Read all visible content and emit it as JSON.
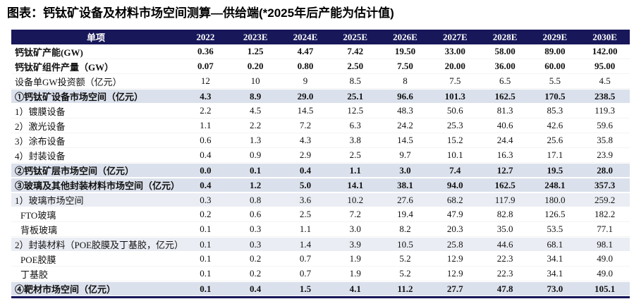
{
  "title": "图表：钙钛矿设备及材料市场空间测算—供给端(*2025年后产能为估计值)",
  "colors": {
    "header_bg": "#17175a",
    "header_text": "#ffffff",
    "highlight_row_bg": "#dbe1ec",
    "subhighlight_row_bg": "#eaedf3",
    "bottom_border": "#17175a",
    "body_text": "#111111"
  },
  "chart_data": {
    "type": "table",
    "title": "图表：钙钛矿设备及材料市场空间测算—供给端(*2025年后产能为估计值)",
    "columns": [
      "单项",
      "2022",
      "2023E",
      "2024E",
      "2025E",
      "2026E",
      "2027E",
      "2028E",
      "2029E",
      "2030E"
    ],
    "rows": [
      {
        "label": "钙钛矿产能(GW)",
        "bold": true,
        "bg": "white",
        "indent": false,
        "values": [
          "0.36",
          "1.25",
          "4.47",
          "7.42",
          "19.50",
          "33.00",
          "58.00",
          "89.00",
          "142.00"
        ]
      },
      {
        "label": "钙钛矿组件产量（GW）",
        "bold": true,
        "bg": "white",
        "indent": false,
        "values": [
          "0.07",
          "0.20",
          "0.80",
          "2.50",
          "7.50",
          "20.00",
          "36.00",
          "60.00",
          "95.00"
        ]
      },
      {
        "label": "设备单GW投资额（亿元）",
        "bold": false,
        "bg": "white",
        "indent": false,
        "values": [
          "12",
          "10",
          "9",
          "8.5",
          "8",
          "7.5",
          "6.5",
          "5.5",
          "4.5"
        ]
      },
      {
        "label": "①钙钛矿设备市场空间（亿元）",
        "bold": true,
        "bg": "highlight",
        "indent": false,
        "values": [
          "4.3",
          "8.9",
          "29.0",
          "25.1",
          "96.6",
          "101.3",
          "162.5",
          "170.5",
          "238.5"
        ]
      },
      {
        "label": "1）镀膜设备",
        "bold": false,
        "bg": "white",
        "indent": false,
        "values": [
          "2.2",
          "4.5",
          "14.5",
          "12.5",
          "48.3",
          "50.6",
          "81.3",
          "85.3",
          "119.3"
        ]
      },
      {
        "label": "2）激光设备",
        "bold": false,
        "bg": "white",
        "indent": false,
        "values": [
          "1.1",
          "2.2",
          "7.2",
          "6.3",
          "24.2",
          "25.3",
          "40.6",
          "42.6",
          "59.6"
        ]
      },
      {
        "label": "3）涂布设备",
        "bold": false,
        "bg": "white",
        "indent": false,
        "values": [
          "0.6",
          "1.3",
          "4.3",
          "3.8",
          "14.5",
          "15.2",
          "24.4",
          "25.6",
          "35.8"
        ]
      },
      {
        "label": "4）封装设备",
        "bold": false,
        "bg": "white",
        "indent": false,
        "values": [
          "0.4",
          "0.9",
          "2.9",
          "2.5",
          "9.7",
          "10.1",
          "16.3",
          "17.1",
          "23.9"
        ]
      },
      {
        "label": "②钙钛矿层市场空间（亿元）",
        "bold": true,
        "bg": "highlight",
        "indent": false,
        "values": [
          "0.0",
          "0.1",
          "0.4",
          "1.1",
          "3.0",
          "7.4",
          "12.7",
          "19.5",
          "28.0"
        ]
      },
      {
        "label": "③玻璃及其他封装材料市场空间（亿元）",
        "bold": true,
        "bg": "highlight",
        "indent": false,
        "values": [
          "0.4",
          "1.2",
          "5.0",
          "14.1",
          "38.1",
          "94.0",
          "162.5",
          "248.1",
          "357.3"
        ]
      },
      {
        "label": "1）玻璃市场空间",
        "bold": false,
        "bg": "subhighlight",
        "indent": false,
        "values": [
          "0.3",
          "0.8",
          "3.6",
          "10.2",
          "27.6",
          "68.2",
          "117.9",
          "180.0",
          "259.2"
        ]
      },
      {
        "label": "FTO玻璃",
        "bold": false,
        "bg": "white",
        "indent": true,
        "values": [
          "0.2",
          "0.6",
          "2.5",
          "7.2",
          "19.4",
          "47.9",
          "82.8",
          "126.5",
          "182.2"
        ]
      },
      {
        "label": "背板玻璃",
        "bold": false,
        "bg": "white",
        "indent": true,
        "values": [
          "0.1",
          "0.3",
          "1.1",
          "3.0",
          "8.2",
          "20.3",
          "35.0",
          "53.5",
          "77.1"
        ]
      },
      {
        "label": "2）封装材料（POE胶膜及丁基胶，亿元）",
        "bold": false,
        "bg": "subhighlight",
        "indent": false,
        "values": [
          "0.1",
          "0.3",
          "1.4",
          "3.9",
          "10.5",
          "25.8",
          "44.6",
          "68.1",
          "98.1"
        ]
      },
      {
        "label": "POE胶膜",
        "bold": false,
        "bg": "white",
        "indent": true,
        "values": [
          "0.1",
          "0.2",
          "0.7",
          "1.9",
          "5.2",
          "12.9",
          "22.3",
          "34.1",
          "49.0"
        ]
      },
      {
        "label": "丁基胶",
        "bold": false,
        "bg": "white",
        "indent": true,
        "values": [
          "0.1",
          "0.2",
          "0.7",
          "1.9",
          "5.2",
          "12.9",
          "22.3",
          "34.1",
          "49.0"
        ]
      },
      {
        "label": "④靶材市场空间（亿元）",
        "bold": true,
        "bg": "highlight",
        "indent": false,
        "values": [
          "0.1",
          "0.4",
          "1.5",
          "4.1",
          "11.2",
          "27.7",
          "47.8",
          "73.0",
          "105.1"
        ]
      }
    ]
  }
}
